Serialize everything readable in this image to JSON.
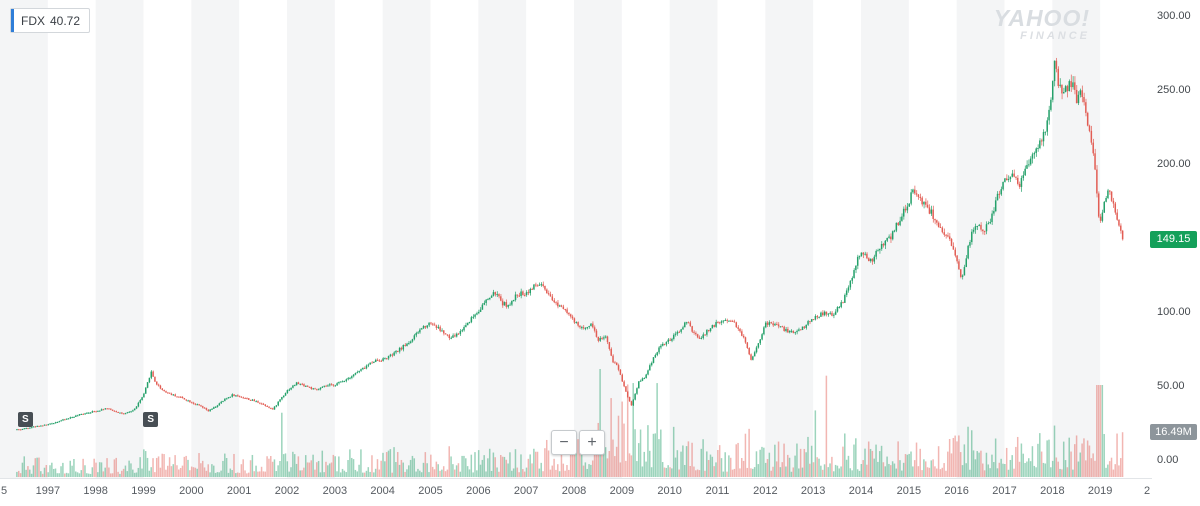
{
  "legend": {
    "symbol": "FDX",
    "value": "40.72"
  },
  "watermark": {
    "line1": "YAHOO!",
    "line2": "FINANCE"
  },
  "price_badge": {
    "text": "149.15",
    "color": "#14a05a"
  },
  "volume_badge": {
    "text": "16.49M",
    "color": "#8d959b"
  },
  "zoom": {
    "minus": "−",
    "plus": "+"
  },
  "split_markers": [
    {
      "label": "S",
      "year": 1996.52
    },
    {
      "label": "S",
      "year": 1999.14
    }
  ],
  "colors": {
    "candle_up": "#24a06a",
    "candle_down": "#e25d54",
    "volume_up": "rgba(36,160,106,0.45)",
    "volume_down": "rgba(226,93,84,0.45)",
    "stripe": "#f4f5f6"
  },
  "chart_data": {
    "type": "candlestick+volume",
    "symbol": "FDX",
    "title": "FDX price history 1996-2019 with volume",
    "last_price": 149.15,
    "last_volume": "16.49M",
    "x_axis": {
      "start_year": 1996,
      "end_year": 2020,
      "tick_labels": [
        "5",
        "1997",
        "1998",
        "1999",
        "2000",
        "2001",
        "2002",
        "2003",
        "2004",
        "2005",
        "2006",
        "2007",
        "2008",
        "2009",
        "2010",
        "2011",
        "2012",
        "2013",
        "2014",
        "2015",
        "2016",
        "2017",
        "2018",
        "2019",
        "2"
      ]
    },
    "y_axis": {
      "min": 0,
      "max": 300,
      "tick_values": [
        300,
        250,
        200,
        150,
        100,
        50,
        0
      ],
      "tick_labels": [
        "300.00",
        "250.00",
        "200.00",
        "150.00",
        "100.00",
        "50.00",
        "0.00"
      ]
    },
    "anchors": [
      [
        1996.0,
        20
      ],
      [
        1996.2,
        21.5
      ],
      [
        1996.4,
        20.5
      ],
      [
        1996.6,
        22
      ],
      [
        1996.8,
        23
      ],
      [
        1997.0,
        24
      ],
      [
        1997.2,
        26
      ],
      [
        1997.4,
        28
      ],
      [
        1997.6,
        30
      ],
      [
        1997.8,
        32
      ],
      [
        1998.0,
        33
      ],
      [
        1998.2,
        35
      ],
      [
        1998.4,
        33
      ],
      [
        1998.6,
        31
      ],
      [
        1998.8,
        34
      ],
      [
        1999.0,
        44
      ],
      [
        1999.1,
        54
      ],
      [
        1999.15,
        60
      ],
      [
        1999.25,
        52
      ],
      [
        1999.4,
        47
      ],
      [
        1999.6,
        44
      ],
      [
        1999.8,
        42
      ],
      [
        2000.0,
        39
      ],
      [
        2000.2,
        36
      ],
      [
        2000.35,
        33
      ],
      [
        2000.5,
        36
      ],
      [
        2000.7,
        41
      ],
      [
        2000.85,
        44
      ],
      [
        2001.0,
        43
      ],
      [
        2001.2,
        41
      ],
      [
        2001.4,
        39
      ],
      [
        2001.6,
        36
      ],
      [
        2001.7,
        34
      ],
      [
        2001.85,
        41
      ],
      [
        2002.0,
        47
      ],
      [
        2002.2,
        52
      ],
      [
        2002.4,
        50
      ],
      [
        2002.6,
        47
      ],
      [
        2002.8,
        50
      ],
      [
        2003.0,
        51
      ],
      [
        2003.2,
        54
      ],
      [
        2003.4,
        58
      ],
      [
        2003.6,
        62
      ],
      [
        2003.8,
        67
      ],
      [
        2004.0,
        68
      ],
      [
        2004.2,
        71
      ],
      [
        2004.4,
        76
      ],
      [
        2004.6,
        81
      ],
      [
        2004.8,
        89
      ],
      [
        2005.0,
        93
      ],
      [
        2005.2,
        88
      ],
      [
        2005.4,
        82
      ],
      [
        2005.6,
        86
      ],
      [
        2005.8,
        94
      ],
      [
        2006.0,
        101
      ],
      [
        2006.2,
        109
      ],
      [
        2006.35,
        113
      ],
      [
        2006.5,
        106
      ],
      [
        2006.65,
        104
      ],
      [
        2006.8,
        112
      ],
      [
        2007.0,
        113
      ],
      [
        2007.15,
        117
      ],
      [
        2007.3,
        119
      ],
      [
        2007.45,
        111
      ],
      [
        2007.6,
        106
      ],
      [
        2007.8,
        103
      ],
      [
        2008.0,
        93
      ],
      [
        2008.2,
        88
      ],
      [
        2008.35,
        93
      ],
      [
        2008.5,
        81
      ],
      [
        2008.65,
        84
      ],
      [
        2008.8,
        67
      ],
      [
        2008.9,
        64
      ],
      [
        2009.0,
        54
      ],
      [
        2009.15,
        40
      ],
      [
        2009.2,
        37
      ],
      [
        2009.35,
        53
      ],
      [
        2009.5,
        57
      ],
      [
        2009.65,
        69
      ],
      [
        2009.8,
        77
      ],
      [
        2010.0,
        81
      ],
      [
        2010.2,
        87
      ],
      [
        2010.35,
        94
      ],
      [
        2010.5,
        85
      ],
      [
        2010.65,
        82
      ],
      [
        2010.8,
        88
      ],
      [
        2011.0,
        93
      ],
      [
        2011.2,
        95
      ],
      [
        2011.35,
        93
      ],
      [
        2011.55,
        82
      ],
      [
        2011.7,
        68
      ],
      [
        2011.85,
        79
      ],
      [
        2012.0,
        92
      ],
      [
        2012.2,
        92
      ],
      [
        2012.4,
        88
      ],
      [
        2012.6,
        86
      ],
      [
        2012.8,
        90
      ],
      [
        2013.0,
        96
      ],
      [
        2013.2,
        99
      ],
      [
        2013.4,
        98
      ],
      [
        2013.6,
        106
      ],
      [
        2013.8,
        122
      ],
      [
        2013.95,
        138
      ],
      [
        2014.0,
        140
      ],
      [
        2014.2,
        134
      ],
      [
        2014.4,
        144
      ],
      [
        2014.6,
        150
      ],
      [
        2014.8,
        162
      ],
      [
        2014.95,
        172
      ],
      [
        2015.0,
        175
      ],
      [
        2015.1,
        183
      ],
      [
        2015.25,
        176
      ],
      [
        2015.4,
        170
      ],
      [
        2015.55,
        163
      ],
      [
        2015.7,
        152
      ],
      [
        2015.85,
        148
      ],
      [
        2016.0,
        134
      ],
      [
        2016.1,
        123
      ],
      [
        2016.25,
        146
      ],
      [
        2016.4,
        161
      ],
      [
        2016.55,
        153
      ],
      [
        2016.7,
        162
      ],
      [
        2016.85,
        178
      ],
      [
        2017.0,
        190
      ],
      [
        2017.15,
        193
      ],
      [
        2017.3,
        186
      ],
      [
        2017.45,
        196
      ],
      [
        2017.6,
        208
      ],
      [
        2017.75,
        214
      ],
      [
        2017.9,
        228
      ],
      [
        2018.0,
        252
      ],
      [
        2018.05,
        271
      ],
      [
        2018.1,
        258
      ],
      [
        2018.2,
        245
      ],
      [
        2018.3,
        251
      ],
      [
        2018.4,
        256
      ],
      [
        2018.5,
        243
      ],
      [
        2018.6,
        251
      ],
      [
        2018.7,
        233
      ],
      [
        2018.8,
        220
      ],
      [
        2018.88,
        198
      ],
      [
        2018.95,
        168
      ],
      [
        2019.0,
        161
      ],
      [
        2019.1,
        178
      ],
      [
        2019.2,
        181
      ],
      [
        2019.3,
        169
      ],
      [
        2019.4,
        159
      ],
      [
        2019.45,
        153
      ],
      [
        2019.5,
        149.15
      ]
    ]
  }
}
